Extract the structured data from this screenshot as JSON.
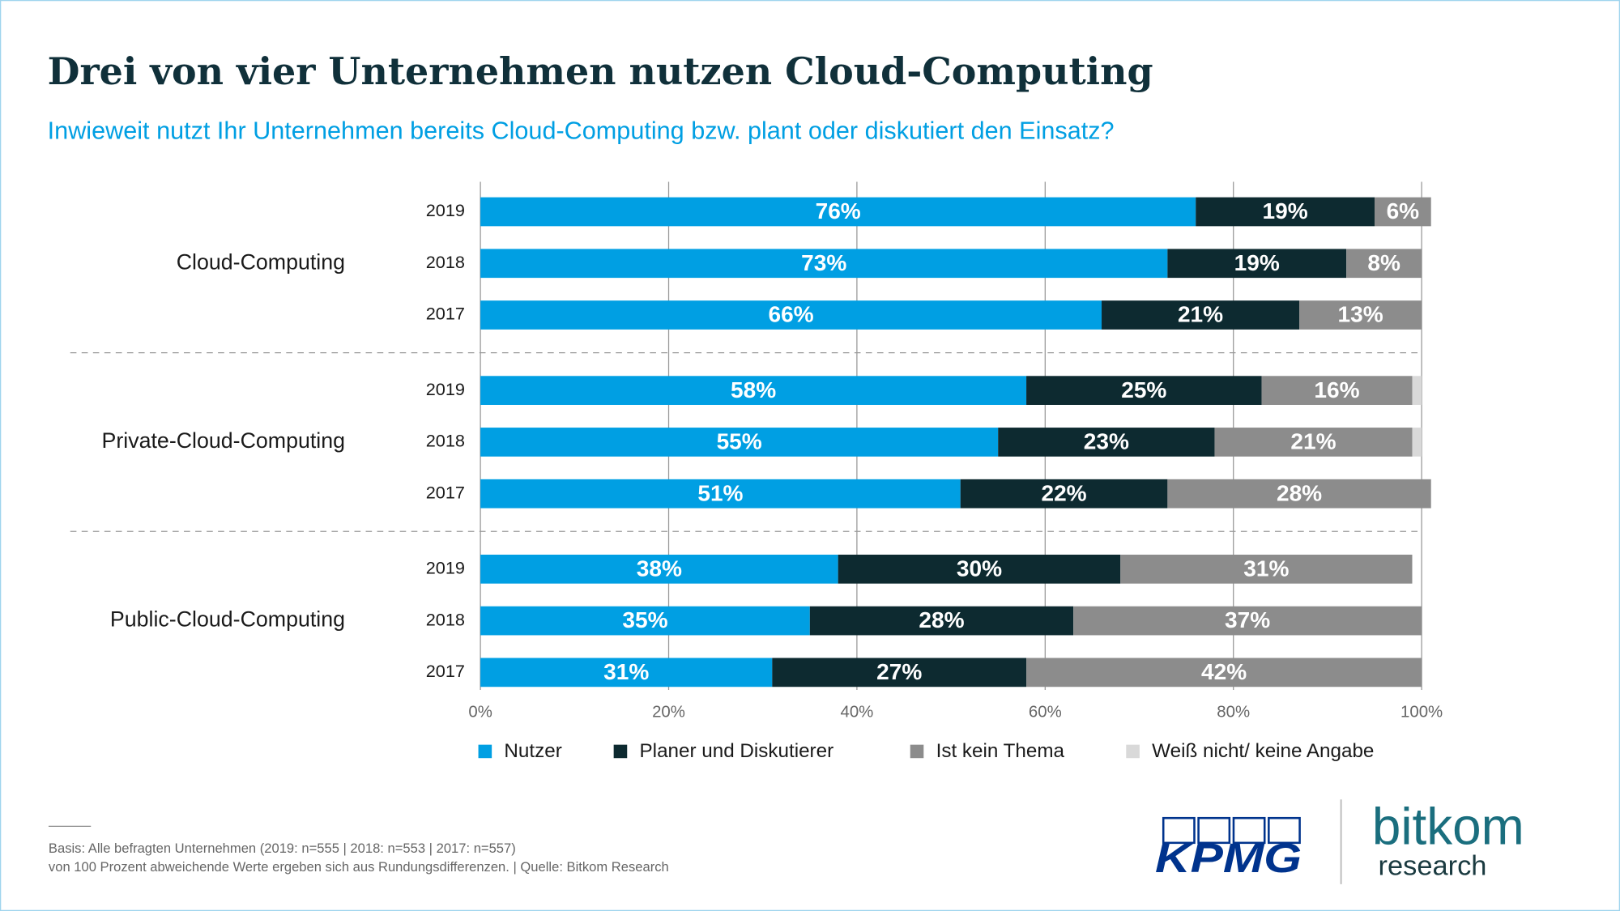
{
  "chart_data": {
    "type": "stacked-bar-horizontal",
    "title": "Drei von vier Unternehmen nutzen Cloud-Computing",
    "subtitle": "Inwieweit nutzt Ihr Unternehmen bereits Cloud-Computing bzw. plant oder diskutiert den Einsatz?",
    "groups": [
      "Cloud-Computing",
      "Private-Cloud-Computing",
      "Public-Cloud-Computing"
    ],
    "categories": [
      "2019",
      "2018",
      "2017",
      "2019",
      "2018",
      "2017",
      "2019",
      "2018",
      "2017"
    ],
    "series": [
      {
        "name": "Nutzer",
        "color": "#009fe3",
        "values": [
          76,
          73,
          66,
          58,
          55,
          51,
          38,
          35,
          31
        ],
        "value_labels": [
          "76%",
          "73%",
          "66%",
          "58%",
          "55%",
          "51%",
          "38%",
          "35%",
          "31%"
        ]
      },
      {
        "name": "Planer und Diskutierer",
        "color": "#0d2a30",
        "values": [
          19,
          19,
          21,
          25,
          23,
          22,
          30,
          28,
          27
        ],
        "value_labels": [
          "19%",
          "19%",
          "21%",
          "25%",
          "23%",
          "22%",
          "30%",
          "28%",
          "27%"
        ]
      },
      {
        "name": "Ist kein Thema",
        "color": "#8c8c8c",
        "values": [
          6,
          8,
          13,
          16,
          21,
          28,
          31,
          37,
          42
        ],
        "value_labels": [
          "6%",
          "8%",
          "13%",
          "16%",
          "21%",
          "28%",
          "31%",
          "37%",
          "42%"
        ]
      },
      {
        "name": "Weiß nicht/ keine Angabe",
        "color": "#d9d9d9",
        "values": [
          null,
          null,
          null,
          1,
          1,
          null,
          null,
          null,
          null
        ]
      }
    ],
    "xlim": [
      0,
      100
    ],
    "xticks": [
      {
        "value": 0,
        "label": "0%"
      },
      {
        "value": 20,
        "label": "20%"
      },
      {
        "value": 40,
        "label": "40%"
      },
      {
        "value": 60,
        "label": "60%"
      },
      {
        "value": 80,
        "label": "80%"
      },
      {
        "value": 100,
        "label": "100%"
      }
    ],
    "grid": true,
    "legend": "bottom"
  },
  "footer": {
    "notes": [
      "Basis: Alle befragten Unternehmen (2019: n=555 | 2018: n=553 | 2017: n=557)",
      "von 100 Prozent abweichende Werte ergeben sich aus Rundungsdifferenzen. | Quelle: Bitkom Research"
    ]
  },
  "logos": {
    "kpmg": "KPMG",
    "bitkom": "bitkom",
    "research": "research"
  }
}
